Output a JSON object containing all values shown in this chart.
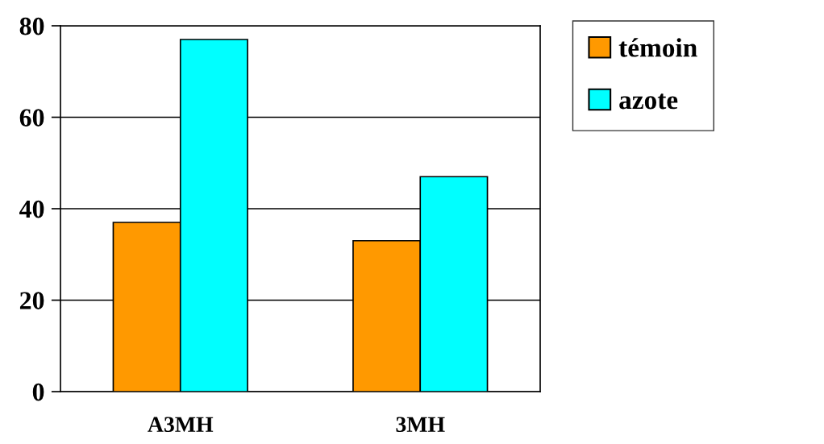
{
  "chart_data": {
    "type": "bar",
    "categories": [
      "A3MH",
      "3MH"
    ],
    "series": [
      {
        "name": "témoin",
        "color": "#ff9900",
        "values": [
          37,
          33
        ]
      },
      {
        "name": "azote",
        "color": "#00ffff",
        "values": [
          77,
          47
        ]
      }
    ],
    "ylim": [
      0,
      80
    ],
    "yticks": [
      0,
      20,
      40,
      60,
      80
    ],
    "grid": "y",
    "legend": "top right"
  }
}
